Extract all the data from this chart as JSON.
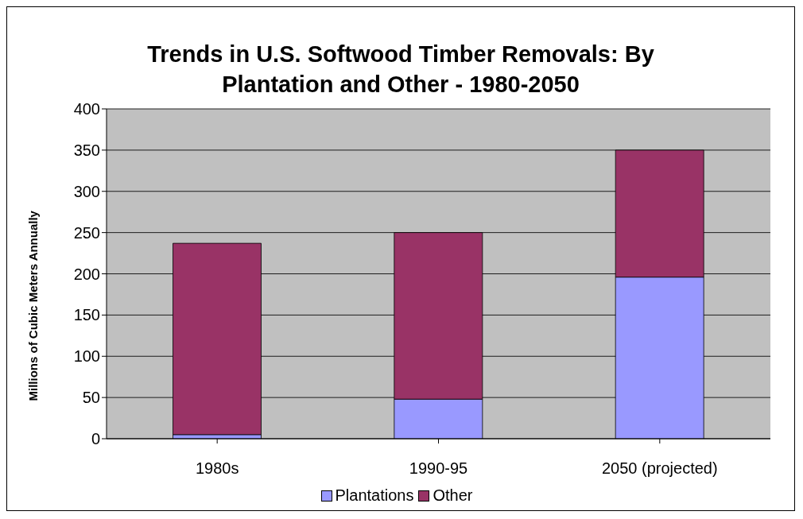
{
  "chart_data": {
    "type": "bar",
    "title": "Trends in U.S. Softwood Timber Removals: By Plantation and Other - 1980-2050",
    "ylabel": "Millions of Cubic Meters Annually",
    "categories": [
      "1980s",
      "1990-95",
      "2050 (projected)"
    ],
    "stacked": true,
    "series": [
      {
        "name": "Plantations",
        "color": "#9999ff",
        "values": [
          5,
          48,
          196
        ]
      },
      {
        "name": "Other",
        "color": "#993366",
        "values": [
          232,
          202,
          154
        ]
      }
    ],
    "ylim": [
      0,
      400
    ],
    "yticks": [
      0,
      50,
      100,
      150,
      200,
      250,
      300,
      350,
      400
    ],
    "grid": "y",
    "legend": "bottom"
  }
}
